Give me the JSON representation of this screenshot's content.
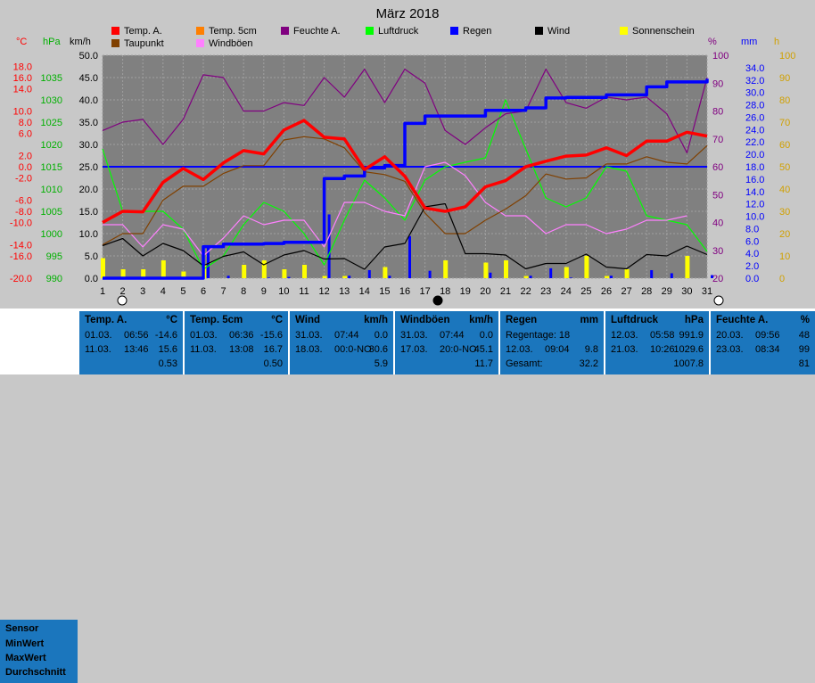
{
  "title": "März 2018",
  "axes": {
    "temp_unit": "°C",
    "hpa_unit": "hPa",
    "kmh_unit": "km/h",
    "pct_unit": "%",
    "mm_unit": "mm",
    "h_unit": "h",
    "temp_ticks": [
      "18.0",
      "16.0",
      "14.0",
      "10.0",
      "8.0",
      "6.0",
      "2.0",
      "0.0",
      "-2.0",
      "-6.0",
      "-8.0",
      "-10.0",
      "-14.0",
      "-16.0",
      "-20.0"
    ],
    "hpa_ticks": [
      "1035",
      "1030",
      "1025",
      "1020",
      "1015",
      "1010",
      "1005",
      "1000",
      "995",
      "990"
    ],
    "kmh_ticks": [
      "50.0",
      "45.0",
      "40.0",
      "35.0",
      "30.0",
      "25.0",
      "20.0",
      "15.0",
      "10.0",
      "5.0",
      "0.0"
    ],
    "pct_ticks": [
      "100",
      "90",
      "80",
      "70",
      "60",
      "50",
      "40",
      "30",
      "20"
    ],
    "mm_ticks": [
      "34.0",
      "32.0",
      "30.0",
      "28.0",
      "26.0",
      "24.0",
      "22.0",
      "20.0",
      "18.0",
      "16.0",
      "14.0",
      "12.0",
      "10.0",
      "8.0",
      "6.0",
      "4.0",
      "2.0",
      "0.0"
    ],
    "h_ticks": [
      "100",
      "90",
      "80",
      "70",
      "60",
      "50",
      "40",
      "30",
      "20",
      "10",
      "0"
    ],
    "day_ticks": [
      "1",
      "2",
      "3",
      "4",
      "5",
      "6",
      "7",
      "8",
      "9",
      "10",
      "11",
      "12",
      "13",
      "14",
      "15",
      "16",
      "17",
      "18",
      "19",
      "20",
      "21",
      "22",
      "23",
      "24",
      "25",
      "26",
      "27",
      "28",
      "29",
      "30",
      "31"
    ]
  },
  "legend": [
    {
      "label": "Temp. A.",
      "color": "#ff0000"
    },
    {
      "label": "Temp. 5cm",
      "color": "#ff7f00"
    },
    {
      "label": "Feuchte A.",
      "color": "#800080"
    },
    {
      "label": "Luftdruck",
      "color": "#00ff00"
    },
    {
      "label": "Regen",
      "color": "#0000ff"
    },
    {
      "label": "Wind",
      "color": "#000000"
    },
    {
      "label": "Sonnenschein",
      "color": "#ffff00"
    },
    {
      "label": "Taupunkt",
      "color": "#804000"
    },
    {
      "label": "Windböen",
      "color": "#ff80ff"
    }
  ],
  "chart_data": {
    "type": "line",
    "title": "März 2018",
    "x": [
      1,
      2,
      3,
      4,
      5,
      6,
      7,
      8,
      9,
      10,
      11,
      12,
      13,
      14,
      15,
      16,
      17,
      18,
      19,
      20,
      21,
      22,
      23,
      24,
      25,
      26,
      27,
      28,
      29,
      30,
      31
    ],
    "xlim": [
      1,
      31
    ],
    "axes_ranges": {
      "temp_C": [
        -20,
        20
      ],
      "pressure_hPa": [
        990,
        1040
      ],
      "wind_kmh": [
        0,
        50
      ],
      "humidity_pct": [
        20,
        100
      ],
      "rain_mm": [
        0,
        36
      ],
      "sunshine_h": [
        0,
        100
      ]
    },
    "series": [
      {
        "name": "Temp. A.",
        "axis": "temp_C",
        "color": "#ff0000",
        "values": [
          -10.0,
          -8.0,
          -8.1,
          -2.8,
          -0.3,
          -2.3,
          0.7,
          2.9,
          2.3,
          6.6,
          8.3,
          5.3,
          5.0,
          -0.5,
          1.8,
          -1.7,
          -7.4,
          -8.0,
          -7.2,
          -3.6,
          -2.5,
          0.0,
          1.0,
          1.9,
          2.1,
          3.4,
          2.0,
          4.6,
          4.6,
          6.2,
          5.5
        ],
        "style": "thick"
      },
      {
        "name": "Taupunkt",
        "axis": "temp_C",
        "color": "#804000",
        "values": [
          -14.0,
          -12.0,
          -12.0,
          -6.0,
          -3.5,
          -3.5,
          -1.2,
          0.2,
          0.2,
          4.8,
          5.4,
          5.0,
          3.4,
          -0.9,
          -1.4,
          -2.6,
          -8.3,
          -12.0,
          -12.0,
          -9.6,
          -7.6,
          -5.2,
          -1.3,
          -2.2,
          -2.0,
          0.5,
          0.5,
          1.8,
          0.8,
          0.5,
          3.8
        ]
      },
      {
        "name": "Feuchte A.",
        "axis": "humidity_pct",
        "color": "#800080",
        "values": [
          73,
          76,
          77,
          68,
          77,
          93,
          92,
          80,
          80,
          83,
          82,
          92,
          85,
          95,
          83,
          95,
          90,
          73,
          68,
          74,
          79,
          80,
          95,
          83,
          81,
          85,
          84,
          85,
          79,
          65,
          92
        ]
      },
      {
        "name": "Luftdruck",
        "axis": "pressure_hPa",
        "color": "#00ff00",
        "values": [
          1019,
          1005,
          1005,
          1005,
          1001,
          992,
          995,
          1002,
          1007,
          1005,
          1000,
          993,
          1003,
          1012,
          1008,
          1003,
          1012,
          1015,
          1016,
          1017,
          1030,
          1019,
          1008,
          1006,
          1008,
          1015,
          1014,
          1004,
          1003,
          1002,
          996
        ]
      },
      {
        "name": "Regen",
        "axis": "rain_mm",
        "color": "#0000ff",
        "values": [
          0,
          0,
          0,
          0,
          0,
          5.1,
          5.5,
          5.5,
          5.6,
          5.8,
          5.8,
          16.1,
          16.5,
          17.8,
          18.2,
          25.0,
          26.2,
          26.2,
          26.2,
          27.1,
          27.1,
          27.5,
          29.1,
          29.2,
          29.2,
          29.6,
          29.6,
          30.9,
          31.7,
          31.7,
          32.2
        ],
        "style": "step"
      },
      {
        "name": "Windböen",
        "axis": "wind_kmh",
        "color": "#ff80ff",
        "values": [
          12,
          12,
          7,
          12,
          11,
          5,
          9,
          14,
          12,
          13,
          13,
          7,
          17,
          17,
          15,
          14,
          25,
          26,
          23,
          17,
          14,
          14,
          10,
          12,
          12,
          10,
          11,
          13,
          13,
          14,
          null
        ]
      },
      {
        "name": "Wind",
        "axis": "wind_kmh",
        "color": "#000000",
        "values": [
          7.3,
          8.9,
          5.0,
          7.8,
          6.2,
          2.8,
          4.9,
          5.9,
          3.0,
          5.2,
          6.2,
          4.3,
          4.4,
          2.0,
          7.0,
          7.8,
          16.0,
          16.7,
          5.5,
          5.5,
          5.2,
          2.1,
          3.3,
          3.3,
          5.4,
          2.5,
          2.1,
          5.3,
          5.0,
          7.2,
          5.3
        ]
      },
      {
        "name": "Sonnenschein",
        "axis": "sunshine_h",
        "color": "#ffff00",
        "type": "bar",
        "values": [
          9,
          4,
          4,
          8,
          3,
          6,
          0,
          6,
          8,
          4,
          6,
          1,
          1,
          0,
          5,
          0,
          0,
          8,
          0,
          7,
          8,
          1,
          0,
          5,
          10,
          1,
          4,
          0,
          0,
          10,
          0
        ]
      },
      {
        "name": "Regen (Tag)",
        "axis": "rain_mm",
        "color": "#0000ff",
        "type": "bar",
        "values": [
          0,
          0,
          0,
          0,
          0,
          5.1,
          0.4,
          0,
          0.1,
          0.2,
          0,
          10.3,
          0.4,
          1.3,
          0.4,
          6.8,
          1.2,
          0,
          0,
          0.9,
          0,
          0.4,
          1.6,
          0.1,
          0,
          0.4,
          0,
          1.3,
          0.8,
          0,
          0.5
        ]
      }
    ]
  },
  "stats": {
    "row_labels": {
      "sensor": "Sensor",
      "min": "MinWert",
      "max": "MaxWert",
      "avg": "Durchschnitt"
    },
    "panels": [
      {
        "title": "Temp. A.",
        "unit": "°C",
        "rows": [
          [
            "01.03.",
            "06:56",
            "-14.6"
          ],
          [
            "11.03.",
            "13:46",
            "15.6"
          ],
          [
            "",
            "",
            "0.53"
          ]
        ]
      },
      {
        "title": "Temp. 5cm",
        "unit": "°C",
        "rows": [
          [
            "01.03.",
            "06:36",
            "-15.6"
          ],
          [
            "11.03.",
            "13:08",
            "16.7"
          ],
          [
            "",
            "",
            "0.50"
          ]
        ]
      },
      {
        "title": "Wind",
        "unit": "km/h",
        "rows": [
          [
            "31.03.",
            "07:44",
            "0.0"
          ],
          [
            "18.03.",
            "00:0-NO",
            "30.6"
          ],
          [
            "",
            "",
            "5.9"
          ]
        ]
      },
      {
        "title": "Windböen",
        "unit": "km/h",
        "rows": [
          [
            "31.03.",
            "07:44",
            "0.0"
          ],
          [
            "17.03.",
            "20:0-NO",
            "45.1"
          ],
          [
            "",
            "",
            "11.7"
          ]
        ]
      },
      {
        "title": "Regen",
        "unit": "mm",
        "rows": [
          [
            "Regentage: 18",
            "",
            ""
          ],
          [
            "12.03.",
            "09:04",
            "9.8"
          ],
          [
            "Gesamt:",
            "",
            "32.2"
          ]
        ]
      },
      {
        "title": "Luftdruck",
        "unit": "hPa",
        "rows": [
          [
            "12.03.",
            "05:58",
            "991.9"
          ],
          [
            "21.03.",
            "10:26",
            "1029.6"
          ],
          [
            "",
            "",
            "1007.8"
          ]
        ]
      },
      {
        "title": "Feuchte A.",
        "unit": "%",
        "rows": [
          [
            "20.03.",
            "09:56",
            "48"
          ],
          [
            "23.03.",
            "08:34",
            "99"
          ],
          [
            "",
            "",
            "81"
          ]
        ]
      }
    ]
  }
}
